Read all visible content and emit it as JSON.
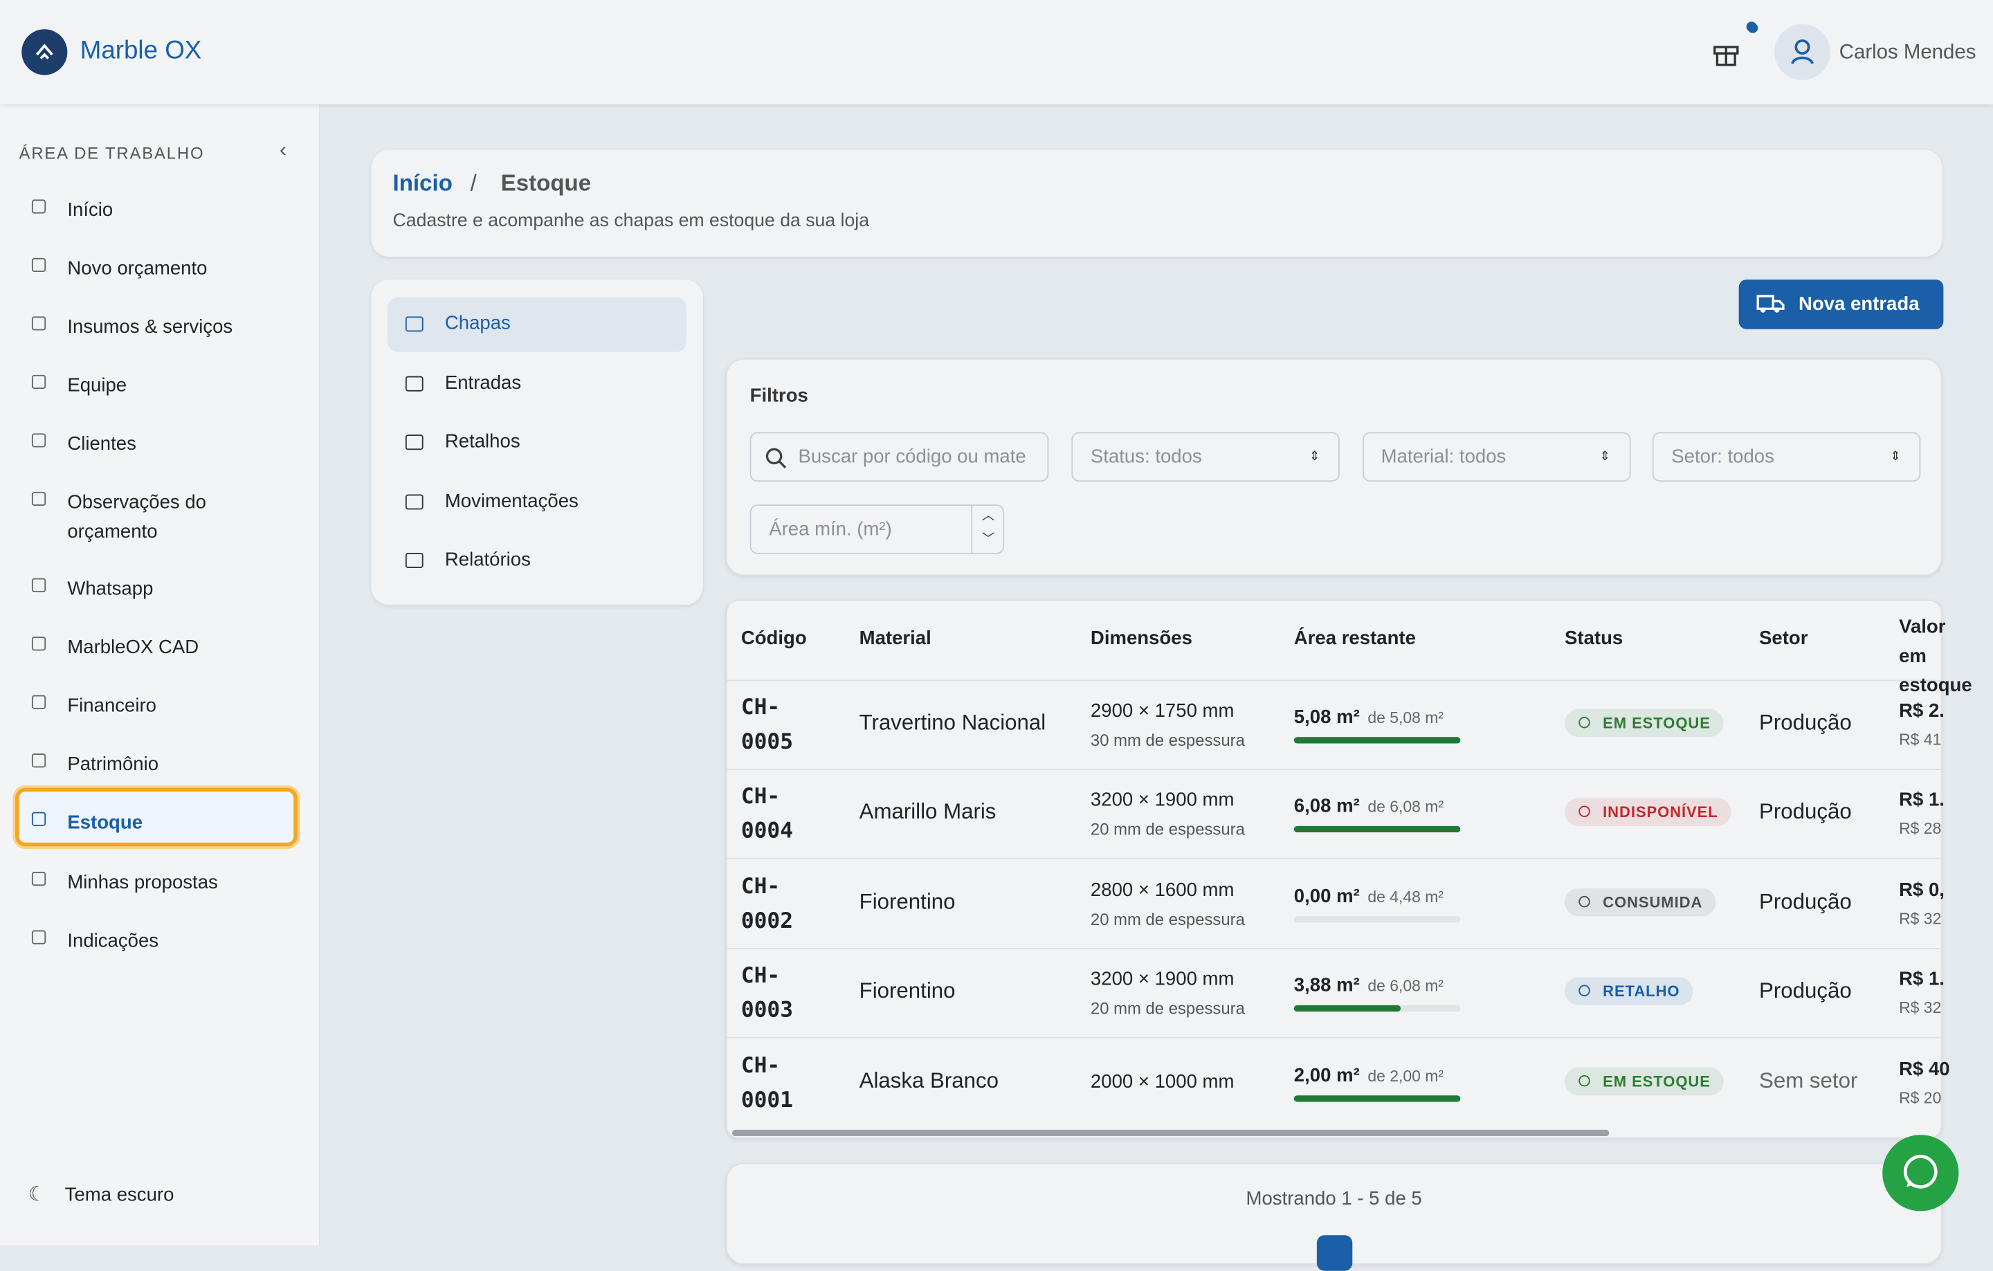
{
  "header": {
    "brand": "Marble OX",
    "user": "Carlos Mendes"
  },
  "sidebar": {
    "section": "ÁREA DE TRABALHO",
    "items": [
      "Início",
      "Novo orçamento",
      "Insumos & serviços",
      "Equipe",
      "Clientes",
      "Observações do orçamento",
      "Whatsapp",
      "MarbleOX CAD",
      "Financeiro",
      "Patrimônio",
      "Estoque",
      "Minhas propostas",
      "Indicações"
    ],
    "active": 10,
    "footer": "Tema escuro"
  },
  "breadcrumb": {
    "items": [
      "Início",
      "Estoque"
    ],
    "separator": "/",
    "subtitle": "Cadastre e acompanhe as chapas em estoque da sua loja"
  },
  "subnav": {
    "items": [
      "Chapas",
      "Entradas",
      "Retalhos",
      "Movimentações",
      "Relatórios"
    ],
    "active": 0
  },
  "action": "Nova entrada",
  "filters": {
    "title": "Filtros",
    "search": "Buscar por código ou mate",
    "selects": [
      "Status: todos",
      "Material: todos",
      "Setor: todos"
    ],
    "area": "Área mín. (m²)"
  },
  "table": {
    "headers": [
      "Código",
      "Material",
      "Dimensões",
      "Área restante",
      "Status",
      "Setor",
      "Valor em estoque"
    ],
    "rows": [
      {
        "code": "CH-0005",
        "material": "Travertino Nacional",
        "dims": "2900 × 1750 mm",
        "thickness": "30 mm de espessura",
        "area": {
          "value": 5.08,
          "label": "5,08 m²"
        },
        "total": {
          "value": 5.08,
          "label": "de 5,08 m²"
        },
        "status": "EM ESTOQUE",
        "status_color": "#2e7d32",
        "sector": "Produção",
        "value": "R$ 2.",
        "value_sub": "R$ 41"
      },
      {
        "code": "CH-0004",
        "material": "Amarillo Maris",
        "dims": "3200 × 1900 mm",
        "thickness": "20 mm de espessura",
        "area": {
          "value": 6.08,
          "label": "6,08 m²"
        },
        "total": {
          "value": 6.08,
          "label": "de 6,08 m²"
        },
        "status": "INDISPONÍVEL",
        "status_color": "#c62828",
        "sector": "Produção",
        "value": "R$ 1.",
        "value_sub": "R$ 28"
      },
      {
        "code": "CH-0002",
        "material": "Fiorentino",
        "dims": "2800 × 1600 mm",
        "thickness": "20 mm de espessura",
        "area": {
          "value": 0,
          "label": "0,00 m²"
        },
        "total": {
          "value": 4.48,
          "label": "de 4,48 m²"
        },
        "status": "CONSUMIDA",
        "status_color": "#4a4f55",
        "sector": "Produção",
        "value": "R$ 0,",
        "value_sub": "R$ 32"
      },
      {
        "code": "CH-0003",
        "material": "Fiorentino",
        "dims": "3200 × 1900 mm",
        "thickness": "20 mm de espessura",
        "area": {
          "value": 3.88,
          "label": "3,88 m²"
        },
        "total": {
          "value": 6.08,
          "label": "de 6,08 m²"
        },
        "status": "RETALHO",
        "status_color": "#1a5fa8",
        "sector": "Produção",
        "value": "R$ 1.",
        "value_sub": "R$ 32"
      },
      {
        "code": "CH-0001",
        "material": "Alaska Branco",
        "dims": "2000 × 1000 mm",
        "thickness": null,
        "area": {
          "value": 2,
          "label": "2,00 m²"
        },
        "total": {
          "value": 2,
          "label": "de 2,00 m²"
        },
        "status": "EM ESTOQUE",
        "status_color": "#2e7d32",
        "sector": "Sem setor",
        "value": "R$ 40",
        "value_sub": "R$ 20"
      }
    ]
  },
  "pagination": "Mostrando 1 - 5 de 5"
}
